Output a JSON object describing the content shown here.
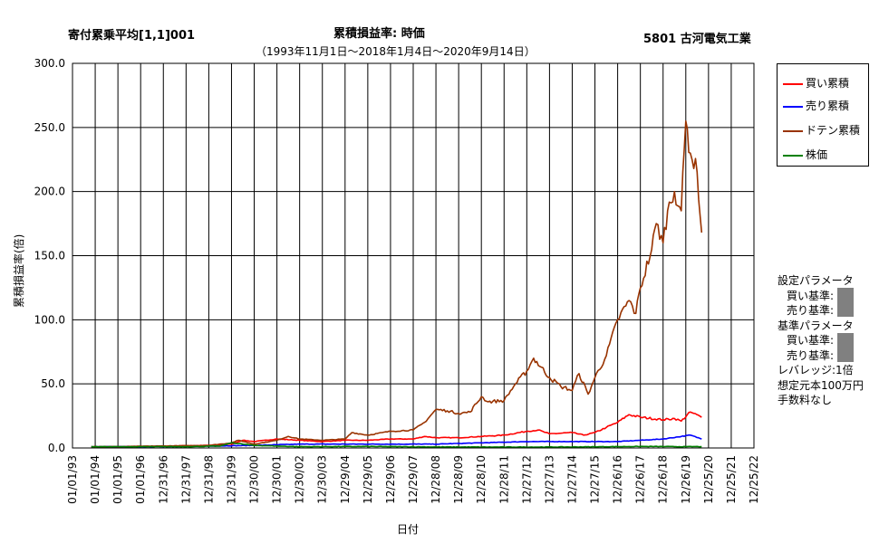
{
  "header": {
    "title_left": "寄付累乗平均[1,1]001",
    "title_center": "累積損益率:  時価",
    "title_right": "5801 古河電気工業",
    "subtitle": "（1993年11月1日～2018年1月4日～2020年9月14日）"
  },
  "params": {
    "heading1": "設定パラメータ",
    "buy1": "買い基準:",
    "sell1": "売り基準:",
    "heading2": "基準パラメータ",
    "buy2": "買い基準:",
    "sell2": "売り基準:",
    "leverage": "レバレッジ:1倍",
    "capital": "想定元本100万円",
    "fee": "手数料なし"
  },
  "colors": {
    "buy": "#ff0000",
    "sell": "#0000ff",
    "doten": "#993300",
    "price": "#008000"
  },
  "chart_data": {
    "type": "line",
    "title": "累積損益率:  時価",
    "xlabel": "日付",
    "ylabel": "累積損益率(倍)",
    "ylim": [
      0,
      300
    ],
    "yticks": [
      "0.0",
      "50.0",
      "100.0",
      "150.0",
      "200.0",
      "250.0",
      "300.0"
    ],
    "xticks": [
      "01/01/93",
      "01/01/94",
      "01/01/95",
      "01/01/96",
      "12/31/96",
      "12/31/97",
      "12/31/98",
      "12/31/99",
      "12/30/00",
      "12/30/01",
      "12/30/02",
      "12/30/03",
      "12/29/04",
      "12/29/05",
      "12/29/06",
      "12/29/07",
      "12/28/08",
      "12/28/09",
      "12/28/10",
      "12/28/11",
      "12/27/12",
      "12/27/13",
      "12/27/14",
      "12/27/15",
      "12/26/16",
      "12/26/17",
      "12/26/18",
      "12/26/19",
      "12/25/20",
      "12/25/21",
      "12/25/22"
    ],
    "x_range_years": [
      1993,
      2023
    ],
    "grid": true,
    "legend_position": "right",
    "series": [
      {
        "name": "買い累積",
        "color": "#ff0000",
        "x": [
          1993.83,
          1995,
          1997,
          1999,
          2000,
          2000.5,
          2001,
          2002,
          2003,
          2004,
          2005,
          2006,
          2007,
          2008,
          2008.5,
          2009,
          2010,
          2011,
          2012,
          2013,
          2013.5,
          2014,
          2015,
          2015.5,
          2016,
          2016.5,
          2017,
          2017.5,
          2018,
          2019,
          2019.5,
          2019.8,
          2020.2,
          2020.7
        ],
        "values": [
          1,
          1,
          1.5,
          2,
          3,
          6,
          5,
          7,
          6,
          5,
          6,
          6,
          7,
          7,
          9,
          8,
          8,
          9,
          10,
          13,
          14,
          11,
          12,
          10,
          12,
          16,
          20,
          26,
          24,
          22,
          23,
          21,
          28,
          24
        ]
      },
      {
        "name": "売り累積",
        "color": "#0000ff",
        "x": [
          1993.83,
          1996,
          1999,
          2001,
          2003,
          2005,
          2007,
          2009,
          2011,
          2013,
          2015,
          2017,
          2018,
          2019,
          2019.8,
          2020.2,
          2020.7
        ],
        "values": [
          1,
          1,
          1.5,
          2,
          3,
          3,
          3,
          3,
          4,
          5,
          5,
          5,
          6,
          7,
          9,
          10,
          7
        ]
      },
      {
        "name": "ドテン累積",
        "color": "#993300",
        "x": [
          1993.83,
          1995,
          1997,
          1999,
          2000,
          2000.3,
          2001,
          2002,
          2002.5,
          2003,
          2004,
          2005,
          2005.3,
          2006,
          2007,
          2008,
          2008.5,
          2009,
          2009.5,
          2010,
          2010.5,
          2011,
          2011.3,
          2012,
          2012.5,
          2013,
          2013.3,
          2014,
          2014.5,
          2015,
          2015.3,
          2015.7,
          2016,
          2016.5,
          2017,
          2017.5,
          2017.8,
          2018,
          2018.5,
          2018.7,
          2019,
          2019.2,
          2019.5,
          2019.8,
          2020,
          2020.2,
          2020.5,
          2020.7
        ],
        "values": [
          1,
          1,
          1.5,
          2,
          4,
          6,
          3,
          6,
          9,
          7,
          6,
          7,
          12,
          10,
          13,
          14,
          20,
          30,
          29,
          27,
          28,
          40,
          36,
          37,
          50,
          60,
          70,
          55,
          48,
          45,
          58,
          42,
          55,
          72,
          100,
          115,
          105,
          125,
          155,
          175,
          160,
          185,
          200,
          185,
          255,
          230,
          215,
          168
        ]
      },
      {
        "name": "株価",
        "color": "#008000",
        "x": [
          1993.83,
          1996,
          1998,
          1999.5,
          2000,
          2000.5,
          2001,
          2003,
          2006,
          2009,
          2012,
          2015,
          2018,
          2020,
          2020.7
        ],
        "values": [
          1,
          1,
          1,
          1.5,
          4,
          3,
          2,
          1,
          1.2,
          0.8,
          0.7,
          0.8,
          1.2,
          1.0,
          1.1
        ]
      }
    ]
  }
}
